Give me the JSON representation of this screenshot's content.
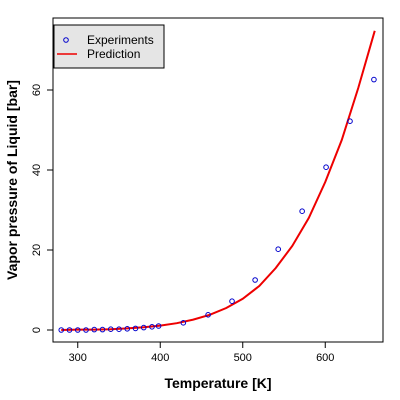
{
  "chart_data": {
    "type": "scatter",
    "title": "",
    "xlabel": "Temperature [K]",
    "ylabel": "Vapor pressure of Liquid [bar]",
    "xlim": [
      270,
      670
    ],
    "ylim": [
      -3,
      78
    ],
    "xticks": [
      300,
      400,
      500,
      600
    ],
    "yticks": [
      0,
      20,
      40,
      60
    ],
    "grid": false,
    "legend_position": "top-left",
    "series": [
      {
        "name": "Experiments",
        "kind": "points",
        "marker": "open-circle",
        "color": "#0000cc",
        "x": [
          280,
          290,
          300,
          310,
          320,
          330,
          340,
          350,
          360,
          370,
          380,
          390,
          398,
          428,
          458,
          487,
          515,
          543,
          572,
          601,
          630,
          659
        ],
        "y": [
          0.0,
          0.0,
          0.0,
          0.0,
          0.1,
          0.1,
          0.2,
          0.2,
          0.3,
          0.4,
          0.6,
          0.8,
          1.0,
          1.8,
          3.8,
          7.2,
          12.5,
          20.2,
          29.7,
          40.7,
          52.2,
          62.6
        ]
      },
      {
        "name": "Prediction",
        "kind": "line",
        "color": "#ee0000",
        "x": [
          280,
          300,
          320,
          340,
          360,
          380,
          400,
          420,
          440,
          460,
          480,
          500,
          520,
          540,
          560,
          580,
          600,
          620,
          640,
          660
        ],
        "y": [
          0.0,
          0.1,
          0.1,
          0.2,
          0.4,
          0.7,
          1.1,
          1.7,
          2.6,
          3.8,
          5.5,
          7.8,
          11.0,
          15.5,
          21.0,
          28.0,
          37.0,
          47.5,
          60.5,
          74.8
        ]
      }
    ]
  }
}
